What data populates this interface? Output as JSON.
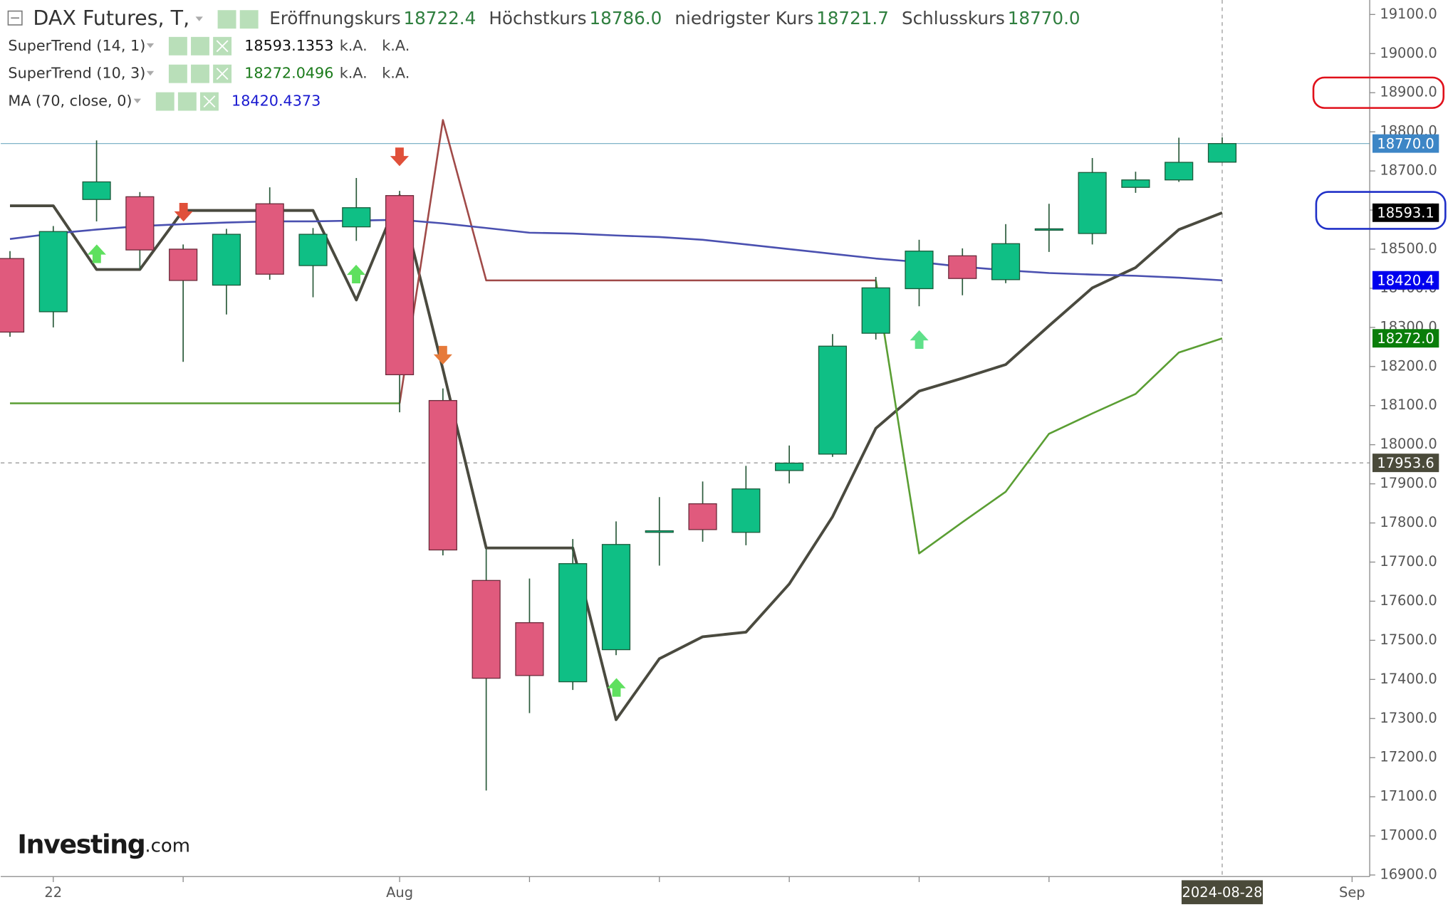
{
  "chart_data": {
    "type": "candlestick",
    "title": "DAX Futures, T,",
    "ohlc_legend": [
      {
        "label": "Eröffnungskurs",
        "value": "18722.4"
      },
      {
        "label": "Höchstkurs",
        "value": "18786.0"
      },
      {
        "label": "niedrigster Kurs",
        "value": "18721.7"
      },
      {
        "label": "Schlusskurs",
        "value": "18770.0"
      }
    ],
    "categories": [
      null,
      "22",
      null,
      null,
      null,
      null,
      null,
      null,
      null,
      "Aug",
      null,
      null,
      null,
      null,
      null,
      null,
      null,
      null,
      null,
      null,
      null,
      null,
      null,
      null,
      null,
      null,
      null,
      null,
      "2024-08-28",
      null,
      null,
      "Sep"
    ],
    "open": [
      18476,
      18340,
      18627,
      18634,
      18500,
      18408,
      18616,
      18458,
      18557,
      18637,
      18113,
      17653,
      17545,
      17394,
      17476,
      17776,
      17849,
      17776,
      17934,
      17976,
      18285,
      18399,
      18483,
      18422,
      18550,
      18540,
      18658,
      18677,
      18722.4,
      null,
      null,
      null
    ],
    "high": [
      18495,
      18559,
      18778,
      18646,
      18512,
      18552,
      18658,
      18554,
      18682,
      18649,
      18144,
      17733,
      17658,
      17759,
      17804,
      17866,
      17906,
      17946,
      17998,
      18283,
      18429,
      18524,
      18502,
      18564,
      18616,
      18733,
      18698,
      18785,
      18786,
      null,
      null,
      null
    ],
    "low": [
      18276,
      18300,
      18571,
      18448,
      18212,
      18333,
      18422,
      18377,
      18521,
      18083,
      17717,
      17116,
      17314,
      17373,
      17462,
      17691,
      17752,
      17743,
      17901,
      17969,
      18269,
      18354,
      18382,
      18413,
      18493,
      18512,
      18644,
      18672,
      18721.7,
      null,
      null,
      null
    ],
    "close": [
      18288,
      18545,
      18672,
      18498,
      18420,
      18538,
      18436,
      18538,
      18606,
      18179,
      17731,
      17403,
      17410,
      17696,
      17745,
      17780,
      17783,
      17887,
      17953,
      18252,
      18401,
      18495,
      18425,
      18514,
      18552,
      18696,
      18677,
      18722,
      18770,
      null,
      null,
      null
    ],
    "up_color": "#0fbf85",
    "down_color": "#e05a7d",
    "series": [
      {
        "name": "SuperTrend (14, 1)",
        "color": "#4a4a3f",
        "value_color": "#111111",
        "notes": [
          "k.A.",
          "k.A."
        ],
        "values": [
          18611,
          18611,
          18448,
          18448,
          18599,
          18599,
          18599,
          18599,
          18370,
          18637,
          18193,
          17736,
          17736,
          17736,
          17297,
          17453,
          17509,
          17521,
          17644,
          17816,
          18042,
          18137,
          18170,
          18205,
          18304,
          18401,
          18453,
          18550,
          18593.1353,
          null,
          null,
          null
        ]
      },
      {
        "name": "SuperTrend (10, 3)",
        "color": "#5a9e33",
        "value_color": "#1a7a1a",
        "notes": [
          "k.A.",
          "k.A."
        ],
        "segment_colors": [
          "#5a9e33",
          "#5a9e33",
          "#5a9e33",
          "#5a9e33",
          "#5a9e33",
          "#5a9e33",
          "#5a9e33",
          "#5a9e33",
          "#5a9e33",
          "#a04a48",
          "#a04a48",
          "#a04a48",
          "#a04a48",
          "#a04a48",
          "#a04a48",
          "#a04a48",
          "#a04a48",
          "#a04a48",
          "#a04a48",
          "#a04a48",
          "#5a9e33",
          "#5a9e33",
          "#5a9e33",
          "#5a9e33",
          "#5a9e33",
          "#5a9e33",
          "#5a9e33",
          "#5a9e33"
        ],
        "values": [
          18106,
          18106,
          18106,
          18106,
          18106,
          18106,
          18106,
          18106,
          18106,
          18106,
          18830,
          18420,
          18420,
          18420,
          18420,
          18420,
          18420,
          18420,
          18420,
          18420,
          18420,
          17722,
          17802,
          17880,
          18028,
          18080,
          18130,
          18236,
          18272.0496,
          null,
          null,
          null
        ]
      },
      {
        "name": "MA (70, close, 0)",
        "color": "#4a50b0",
        "value_color": "#1a1ad0",
        "values": [
          18526,
          18540,
          18550,
          18559,
          18564,
          18568,
          18571,
          18571,
          18573,
          18575,
          18566,
          18554,
          18542,
          18540,
          18535,
          18531,
          18524,
          18512,
          18500,
          18488,
          18476,
          18467,
          18455,
          18446,
          18439,
          18435,
          18432,
          18427,
          18420.4373,
          null,
          null,
          null
        ]
      }
    ],
    "ylim": [
      16896,
      19137
    ],
    "yticks": [
      {
        "value": 16900,
        "label": "16900.0"
      },
      {
        "value": 17000,
        "label": "17000.0"
      },
      {
        "value": 17100,
        "label": "17100.0"
      },
      {
        "value": 17200,
        "label": "17200.0"
      },
      {
        "value": 17300,
        "label": "17300.0"
      },
      {
        "value": 17400,
        "label": "17400.0"
      },
      {
        "value": 17500,
        "label": "17500.0"
      },
      {
        "value": 17600,
        "label": "17600.0"
      },
      {
        "value": 17700,
        "label": "17700.0"
      },
      {
        "value": 17800,
        "label": "17800.0"
      },
      {
        "value": 17900,
        "label": "17900.0"
      },
      {
        "value": 18000,
        "label": "18000.0"
      },
      {
        "value": 18100,
        "label": "18100.0"
      },
      {
        "value": 18200,
        "label": "18200.0"
      },
      {
        "value": 18300,
        "label": "18300.0"
      },
      {
        "value": 18400,
        "label": "18400.0"
      },
      {
        "value": 18500,
        "label": "18500.0"
      },
      {
        "value": 18600,
        "label": "18600.0"
      },
      {
        "value": 18700,
        "label": "18700.0"
      },
      {
        "value": 18800,
        "label": "18800.0"
      },
      {
        "value": 18900,
        "label": "18900.0"
      },
      {
        "value": 19000,
        "label": "19000.0"
      },
      {
        "value": 19100,
        "label": "19100.0"
      }
    ],
    "last_price": {
      "value": 18770,
      "label": "18770.0",
      "color": "#3d86c6"
    },
    "crosshair": {
      "value": 17953.6,
      "label": "17953.6",
      "color": "#4a4a3a"
    },
    "price_badges": [
      {
        "value": 18593.1353,
        "label": "18593.1",
        "color": "#000000"
      },
      {
        "value": 18420.4373,
        "label": "18420.4",
        "color": "#0000ee"
      },
      {
        "value": 18272.0496,
        "label": "18272.0",
        "color": "#0a7d0a"
      }
    ],
    "logo": {
      "name": "Investing",
      "suffix": ".com"
    }
  }
}
